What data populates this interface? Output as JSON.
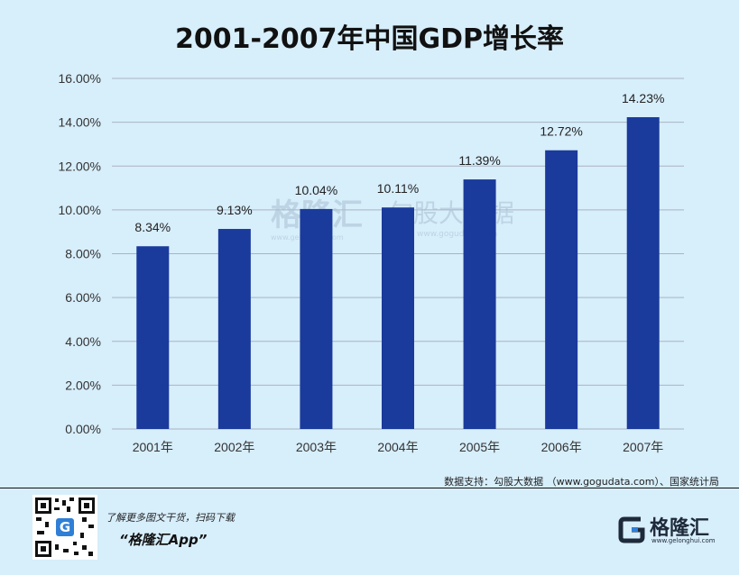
{
  "chart_data": {
    "type": "bar",
    "title": "2001-2007年中国GDP增长率",
    "categories": [
      "2001年",
      "2002年",
      "2003年",
      "2004年",
      "2005年",
      "2006年",
      "2007年"
    ],
    "values": [
      8.34,
      9.13,
      10.04,
      10.11,
      11.39,
      12.72,
      14.23
    ],
    "data_labels": [
      "8.34%",
      "9.13%",
      "10.04%",
      "10.11%",
      "11.39%",
      "12.72%",
      "14.23%"
    ],
    "y_ticks": [
      "0.00%",
      "2.00%",
      "4.00%",
      "6.00%",
      "8.00%",
      "10.00%",
      "12.00%",
      "14.00%",
      "16.00%"
    ],
    "ylim": [
      0,
      16
    ],
    "grid": true,
    "xlabel": "",
    "ylabel": "",
    "bar_color": "#1a3a9c",
    "gridline_color": "#aab4c0"
  },
  "watermarks": {
    "left": "格隆汇",
    "left_url": "www.gelonghui.com",
    "right": "勾股大数据",
    "right_url": "www.gogudata.com"
  },
  "source": "数据支持：勾股大数据 （www.gogudata.com）、国家统计局",
  "footer": {
    "promo_line1": "了解更多图文干货，扫码下载",
    "promo_line2": "“格隆汇App”",
    "brand_name": "格隆汇",
    "brand_url": "www.gelonghui.com",
    "brand_color": "#1e2a3a",
    "accent_color": "#2f7fd6"
  }
}
